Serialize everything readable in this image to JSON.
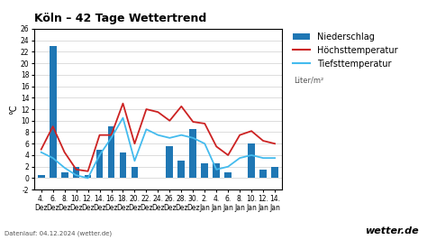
{
  "chart_data": {
    "type": "bar",
    "title": "Köln – 42 Tage Wettertrend",
    "ylabel": "°C",
    "categories": [
      "4.\nDez",
      "6.\nDez",
      "8.\nDez",
      "10.\nDez",
      "12.\nDez",
      "14.\nDez",
      "16.\nDez",
      "18.\nDez",
      "20.\nDez",
      "22.\nDez",
      "24.\nDez",
      "26.\nDez",
      "28.\nDez",
      "30.\nDez",
      "2.\nJan",
      "4.\nJan",
      "6.\nJan",
      "8.\nJan",
      "10.\nJan",
      "12.\nJan",
      "14.\nJan"
    ],
    "series": [
      {
        "name": "Niederschlag",
        "type": "bar",
        "values": [
          0.5,
          23.0,
          1.0,
          2.0,
          0.5,
          5.0,
          9.0,
          4.5,
          2.0,
          0.0,
          0.0,
          5.5,
          3.0,
          8.5,
          2.5,
          2.5,
          1.0,
          0.0,
          6.0,
          1.5,
          2.0
        ]
      },
      {
        "name": "Höchsttemperatur",
        "type": "line",
        "color": "#cc2222",
        "values": [
          5.0,
          9.0,
          4.5,
          1.5,
          1.2,
          7.5,
          7.5,
          13.0,
          6.0,
          12.0,
          11.5,
          10.0,
          12.5,
          9.8,
          9.5,
          5.5,
          4.0,
          7.5,
          8.2,
          6.5,
          6.0
        ]
      },
      {
        "name": "Tiefsttemperatur",
        "type": "line",
        "color": "#44bbee",
        "values": [
          4.5,
          3.5,
          1.8,
          0.5,
          0.0,
          4.0,
          7.0,
          10.5,
          3.0,
          8.5,
          7.5,
          7.0,
          7.5,
          7.0,
          6.0,
          1.5,
          2.0,
          3.5,
          4.0,
          3.5,
          3.5
        ]
      }
    ],
    "ylim": [
      -2,
      26
    ],
    "yticks": [
      -2,
      0,
      2,
      4,
      6,
      8,
      10,
      12,
      14,
      16,
      18,
      20,
      22,
      24,
      26
    ],
    "grid": true,
    "legend": "right",
    "annotations": [
      "Liter/m²",
      "wetter.de",
      "Datenlauf: 04.12.2024 (wetter.de)"
    ]
  }
}
